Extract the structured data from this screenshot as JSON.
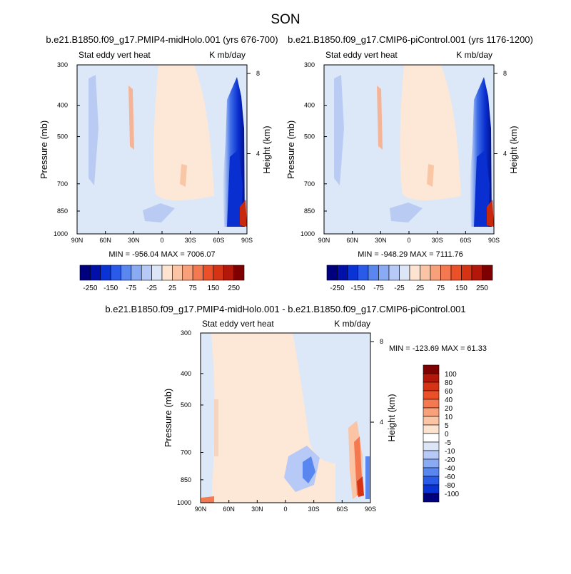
{
  "page_title": "SON",
  "chart_data": [
    {
      "type": "heatmap",
      "title": "b.e21.B1850.f09_g17.PMIP4-midHolo.001 (yrs 676-700)",
      "left_label": "Stat eddy vert heat",
      "right_label": "K mb/day",
      "ylabel": "Pressure (mb)",
      "ylabel_right": "Height (km)",
      "y_scale": "log",
      "ylim": [
        1000,
        300
      ],
      "x_ticks": [
        "90N",
        "60N",
        "30N",
        "0",
        "30S",
        "60S",
        "90S"
      ],
      "y_ticks": [
        "300",
        "400",
        "500",
        "700",
        "850",
        "1000"
      ],
      "height_ticks": [
        "8",
        "4"
      ],
      "stats": "MIN = -956.04   MAX = 7006.07",
      "colorbar_labels": [
        "-250",
        "-150",
        "-75",
        "-25",
        "25",
        "75",
        "150",
        "250"
      ]
    },
    {
      "type": "heatmap",
      "title": "b.e21.B1850.f09_g17.CMIP6-piControl.001 (yrs 1176-1200)",
      "left_label": "Stat eddy vert heat",
      "right_label": "K mb/day",
      "ylabel": "Pressure (mb)",
      "ylabel_right": "Height (km)",
      "y_scale": "log",
      "ylim": [
        1000,
        300
      ],
      "x_ticks": [
        "90N",
        "60N",
        "30N",
        "0",
        "30S",
        "60S",
        "90S"
      ],
      "y_ticks": [
        "300",
        "400",
        "500",
        "700",
        "850",
        "1000"
      ],
      "height_ticks": [
        "8",
        "4"
      ],
      "stats": "MIN = -948.29   MAX = 7111.76",
      "colorbar_labels": [
        "-250",
        "-150",
        "-75",
        "-25",
        "25",
        "75",
        "150",
        "250"
      ]
    },
    {
      "type": "heatmap",
      "title": "b.e21.B1850.f09_g17.PMIP4-midHolo.001 - b.e21.B1850.f09_g17.CMIP6-piControl.001",
      "left_label": "Stat eddy vert heat",
      "right_label": "K mb/day",
      "ylabel": "Pressure (mb)",
      "ylabel_right": "Height (km)",
      "y_scale": "log",
      "ylim": [
        1000,
        300
      ],
      "x_ticks": [
        "90N",
        "60N",
        "30N",
        "0",
        "30S",
        "60S",
        "90S"
      ],
      "y_ticks": [
        "300",
        "400",
        "500",
        "700",
        "850",
        "1000"
      ],
      "height_ticks": [
        "8",
        "4"
      ],
      "stats": "MIN = -123.69   MAX =  61.33",
      "colorbar_labels": [
        "100",
        "80",
        "60",
        "40",
        "20",
        "10",
        "5",
        "0",
        "-5",
        "-10",
        "-20",
        "-40",
        "-60",
        "-80",
        "-100"
      ]
    }
  ],
  "colors": {
    "palette_horizontal": [
      "#00007f",
      "#0010a8",
      "#0a33d6",
      "#2a5ae8",
      "#5a86f0",
      "#8aaaf4",
      "#b7c9f6",
      "#dde6f6",
      "#fde3d0",
      "#fbc4a4",
      "#f8a07a",
      "#f47950",
      "#ec5028",
      "#d63314",
      "#b3170a",
      "#7f0000"
    ],
    "palette_vertical": [
      "#7f0000",
      "#b3170a",
      "#d63314",
      "#ec5028",
      "#f47950",
      "#f8a07a",
      "#fbc4a4",
      "#fde3d0",
      "#ffffff",
      "#dde6f6",
      "#b7c9f6",
      "#8aaaf4",
      "#5a86f0",
      "#2a5ae8",
      "#0a33d6",
      "#00007f"
    ],
    "field_blue": "#dce8f8",
    "field_peach": "#fde7d7"
  }
}
